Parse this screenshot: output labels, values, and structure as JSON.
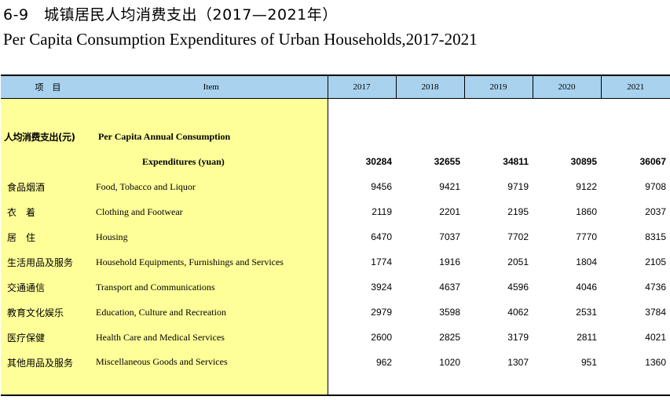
{
  "title": {
    "cn": "6-9　城镇居民人均消费支出（2017—2021年）",
    "en": "Per Capita Consumption Expenditures of Urban Households,2017-2021"
  },
  "table": {
    "headers": {
      "item_cn": "项　目",
      "item_en": "Item",
      "years": [
        "2017",
        "2018",
        "2019",
        "2020",
        "2021"
      ]
    },
    "total": {
      "cn": "人均消费支出(元)",
      "en_line1": "Per Capita Annual Consumption",
      "en_line2": "Expenditures (yuan)",
      "values": [
        "30284",
        "32655",
        "34811",
        "30895",
        "36067"
      ]
    },
    "rows": [
      {
        "cn": "食品烟酒",
        "en": "Food, Tobacco and Liquor",
        "values": [
          "9456",
          "9421",
          "9719",
          "9122",
          "9708"
        ]
      },
      {
        "cn": "衣　着",
        "en": "Clothing and Footwear",
        "values": [
          "2119",
          "2201",
          "2195",
          "1860",
          "2037"
        ]
      },
      {
        "cn": "居　住",
        "en": "Housing",
        "values": [
          "6470",
          "7037",
          "7702",
          "7770",
          "8315"
        ]
      },
      {
        "cn": "生活用品及服务",
        "en": "Household Equipments, Furnishings and Services",
        "values": [
          "1774",
          "1916",
          "2051",
          "1804",
          "2105"
        ]
      },
      {
        "cn": "交通通信",
        "en": "Transport and Communications",
        "values": [
          "3924",
          "4637",
          "4596",
          "4046",
          "4736"
        ]
      },
      {
        "cn": "教育文化娱乐",
        "en": "Education, Culture and Recreation",
        "values": [
          "2979",
          "3598",
          "4062",
          "2531",
          "3784"
        ]
      },
      {
        "cn": "医疗保健",
        "en": "Health Care and Medical Services",
        "values": [
          "2600",
          "2825",
          "3179",
          "2811",
          "4021"
        ]
      },
      {
        "cn": "其他用品及服务",
        "en": "Miscellaneous Goods and Services",
        "values": [
          "962",
          "1020",
          "1307",
          "951",
          "1360"
        ]
      }
    ]
  }
}
